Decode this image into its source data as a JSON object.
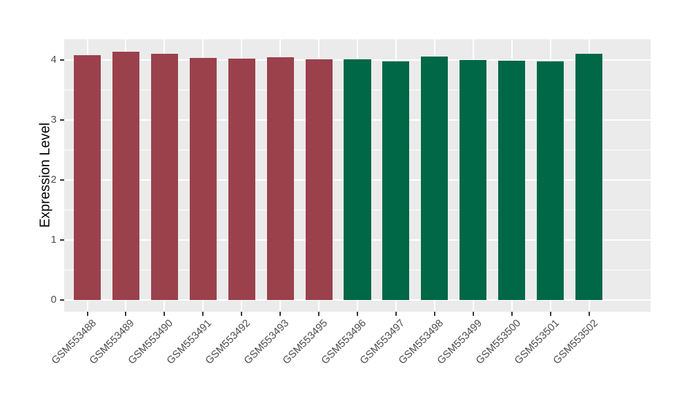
{
  "chart_data": {
    "type": "bar",
    "title": "",
    "xlabel": "",
    "ylabel": "Expression Level",
    "categories": [
      "GSM553488",
      "GSM553489",
      "GSM553490",
      "GSM553491",
      "GSM553492",
      "GSM553493",
      "GSM553495",
      "GSM553496",
      "GSM553497",
      "GSM553498",
      "GSM553499",
      "GSM553500",
      "GSM553501",
      "GSM553502"
    ],
    "values": [
      4.08,
      4.14,
      4.1,
      4.03,
      4.02,
      4.05,
      4.01,
      4.01,
      3.98,
      4.06,
      4.0,
      3.99,
      3.98,
      4.1
    ],
    "bar_colors": [
      "#9A414C",
      "#9A414C",
      "#9A414C",
      "#9A414C",
      "#9A414C",
      "#9A414C",
      "#9A414C",
      "#006747",
      "#006747",
      "#006747",
      "#006747",
      "#006747",
      "#006747",
      "#006747"
    ],
    "ylim": [
      0,
      4.34
    ],
    "yticks": [
      0,
      1,
      2,
      3,
      4
    ],
    "yticks_minor": [
      0.5,
      1.5,
      2.5,
      3.5
    ],
    "grid": "on",
    "legend": "none",
    "bar_width_ratio": 0.7,
    "x_label_angle": 45,
    "theme": {
      "panel_bg": "#EBEBEB",
      "grid_major_color": "#FFFFFF",
      "grid_minor_color": "#FFFFFF",
      "tick_mark_color": "#333333",
      "tick_label_color": "#4D4D4D",
      "axis_title_color": "#000000",
      "plot_bg": "#FFFFFF"
    }
  }
}
